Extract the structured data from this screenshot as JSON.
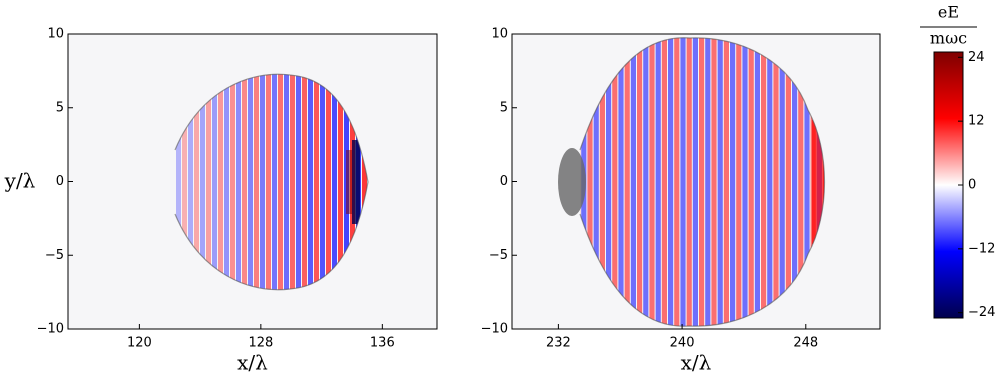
{
  "chart_data": [
    {
      "type": "heatmap",
      "xlabel": "x/λ",
      "ylabel": "y/λ",
      "xlim": [
        115.3,
        139.6
      ],
      "ylim": [
        -10,
        10
      ],
      "xticks": [
        120,
        128,
        136
      ],
      "yticks": [
        {
          "value": -10,
          "label": "−10"
        },
        {
          "value": -5,
          "label": "−5"
        },
        0,
        5,
        10
      ]
    },
    {
      "type": "heatmap",
      "xlabel": "x/λ",
      "xlim": [
        229,
        252.8
      ],
      "ylim": [
        -10,
        10
      ],
      "xticks": [
        232,
        240,
        248
      ],
      "yticks": [
        {
          "value": -10,
          "label": "−10"
        },
        {
          "value": -5,
          "label": "−5"
        },
        0,
        5,
        10
      ]
    },
    {
      "type": "colorbar",
      "label_numerator": "eE",
      "label_denominator": "mωc",
      "clim": [
        -25,
        25
      ],
      "ticks": [
        {
          "value": -24,
          "label": "−24"
        },
        {
          "value": -12,
          "label": "−12"
        },
        0,
        12,
        24
      ],
      "colors": [
        "#00004c",
        "#0000ff",
        "#ffffff",
        "#ff0000",
        "#7f0000"
      ]
    }
  ]
}
